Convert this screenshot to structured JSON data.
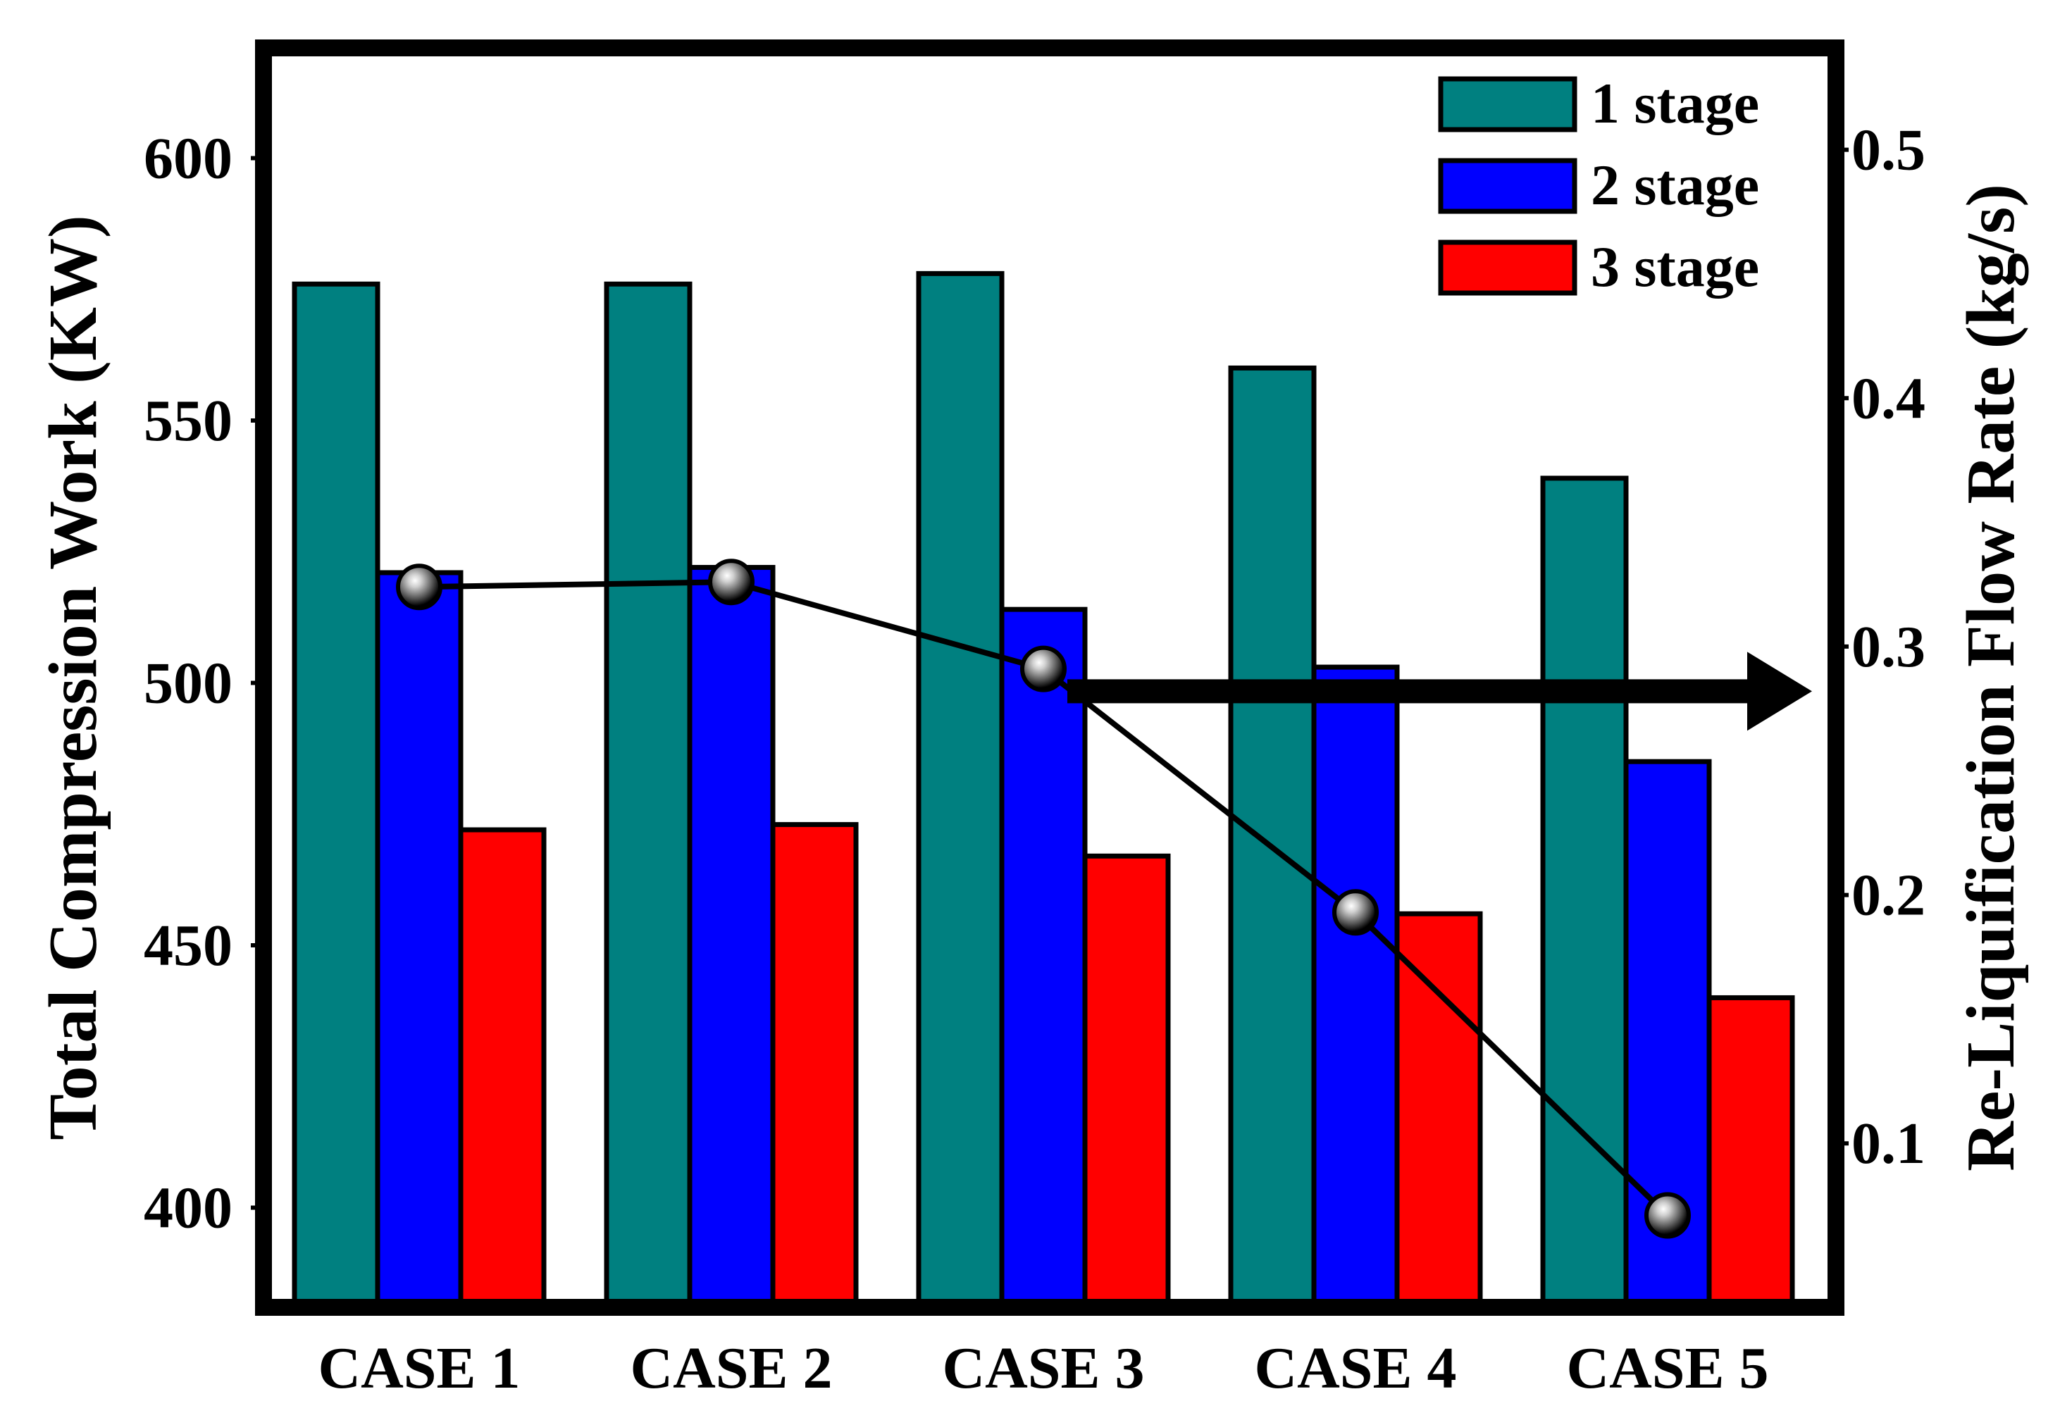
{
  "chart_data": {
    "type": "bar",
    "categories": [
      "CASE 1",
      "CASE 2",
      "CASE 3",
      "CASE 4",
      "CASE 5"
    ],
    "series": [
      {
        "name": "1 stage",
        "color": "#008080",
        "values": [
          576,
          576,
          578,
          560,
          539
        ]
      },
      {
        "name": "2 stage",
        "color": "#0000FF",
        "values": [
          521,
          522,
          514,
          503,
          485
        ]
      },
      {
        "name": "3 stage",
        "color": "#FF0000",
        "values": [
          472,
          473,
          467,
          456,
          440
        ]
      }
    ],
    "line_series": {
      "name": "Re-Liquification Flow Rate",
      "axis": "right",
      "values": [
        0.324,
        0.326,
        0.291,
        0.193,
        0.071
      ],
      "color": "#000000"
    },
    "ylabel": "Total Compression Work (KW)",
    "y2label": "Re-Liquification Flow Rate (kg/s)",
    "ylim": [
      381,
      621
    ],
    "yticks": [
      400,
      450,
      500,
      550,
      600
    ],
    "y2lim": [
      0.034,
      0.541
    ],
    "y2ticks": [
      0.1,
      0.2,
      0.3,
      0.4,
      0.5
    ],
    "y2tick_labels": [
      "0.1",
      "0.2",
      "0.3",
      "0.4",
      "0.5"
    ],
    "annotation": {
      "type": "arrow",
      "points_to": "right-axis",
      "at_value": 0.282
    },
    "legend_position": "top-right",
    "grid": false
  }
}
